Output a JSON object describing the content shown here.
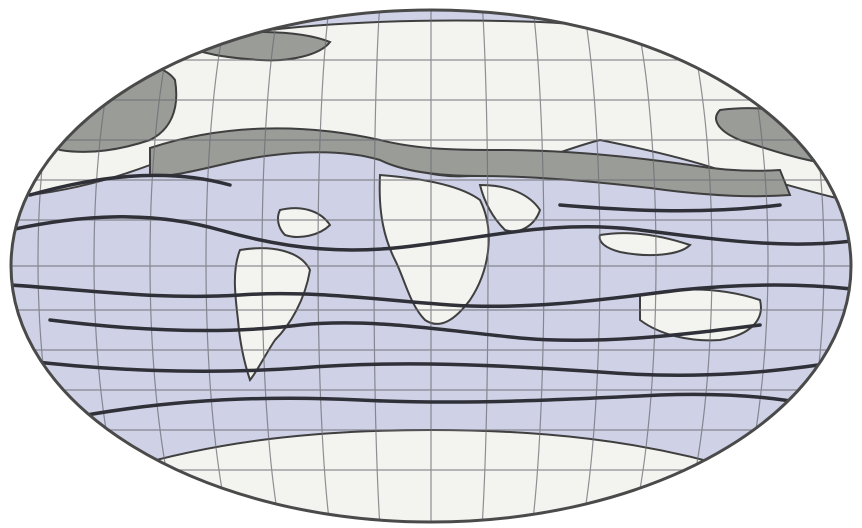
{
  "map": {
    "projection": "elliptical",
    "colors": {
      "background": "#ffffff",
      "ocean": "#cfd2e6",
      "land": "#f3f3ef",
      "shaded_band": "#9a9c98",
      "border": "#3f3f3f",
      "graticule": "#6d6d74",
      "current_lines": "#2f3038"
    },
    "features": [
      "ocean",
      "land-masses",
      "graticule",
      "shaded-northern-band",
      "current-lines"
    ]
  }
}
